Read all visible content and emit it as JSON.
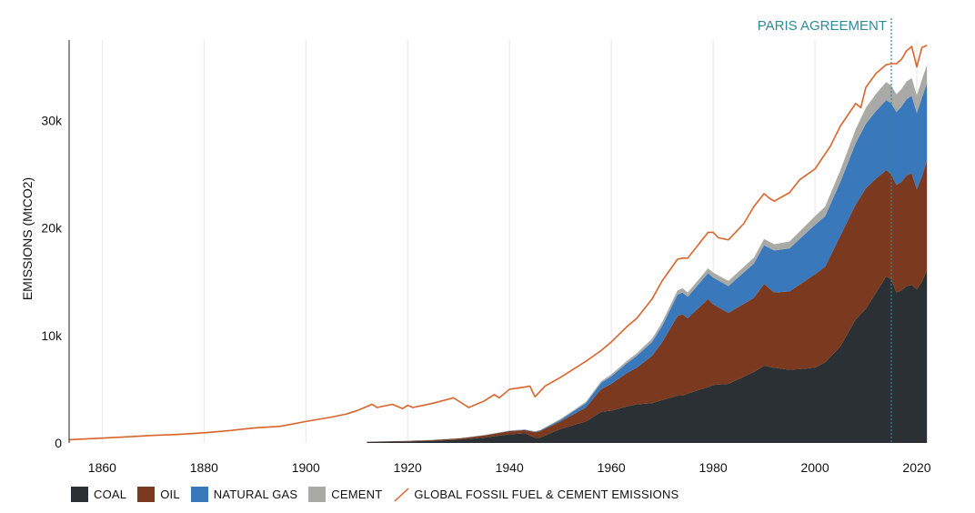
{
  "chart_data": {
    "type": "area",
    "stacked": true,
    "ylabel": "EMISSIONS (MtCO2)",
    "xlabel": "",
    "xlim": [
      1853.5,
      2022.5
    ],
    "ylim": [
      0,
      37500
    ],
    "x_ticks": [
      1860,
      1880,
      1900,
      1920,
      1940,
      1960,
      1980,
      2000,
      2020
    ],
    "y_ticks": [
      0,
      10000,
      20000,
      30000
    ],
    "y_tick_labels": [
      "0",
      "10k",
      "20k",
      "30k"
    ],
    "grid": "vertical",
    "legend_position": "bottom",
    "annotation": {
      "text": "PARIS AGREEMENT",
      "x": 2015
    },
    "x": [
      1912,
      1920,
      1925,
      1930,
      1935,
      1940,
      1943,
      1945,
      1946,
      1950,
      1955,
      1958,
      1960,
      1963,
      1965,
      1968,
      1970,
      1973,
      1974,
      1975,
      1979,
      1980,
      1983,
      1988,
      1990,
      1992,
      1995,
      2000,
      2002,
      2005,
      2008,
      2010,
      2012,
      2014,
      2015,
      2016,
      2017,
      2018,
      2019,
      2020,
      2021,
      2022
    ],
    "series": [
      {
        "name": "COAL",
        "color": "#2b3035",
        "values": [
          100,
          150,
          200,
          300,
          500,
          800,
          900,
          500,
          500,
          1300,
          2000,
          2900,
          3000,
          3400,
          3600,
          3700,
          4000,
          4400,
          4400,
          4600,
          5200,
          5400,
          5500,
          6600,
          7200,
          7000,
          6800,
          7000,
          7500,
          9000,
          11500,
          12500,
          14000,
          15500,
          15200,
          14000,
          14200,
          14600,
          14700,
          14300,
          15000,
          16100
        ]
      },
      {
        "name": "OIL",
        "color": "#7b3a1f",
        "values": [
          20,
          40,
          80,
          120,
          200,
          300,
          300,
          500,
          600,
          700,
          1300,
          2100,
          2500,
          3100,
          3400,
          4400,
          5400,
          7400,
          7600,
          7000,
          8200,
          7500,
          6600,
          6900,
          7600,
          7000,
          7300,
          8700,
          8900,
          10300,
          10700,
          11200,
          10600,
          9900,
          9800,
          10000,
          10100,
          10300,
          10400,
          9300,
          9800,
          10200
        ]
      },
      {
        "name": "NATURAL GAS",
        "color": "#3a78bc",
        "values": [
          0,
          0,
          0,
          0,
          10,
          20,
          30,
          50,
          60,
          150,
          400,
          600,
          700,
          900,
          1100,
          1300,
          1500,
          2000,
          2000,
          2000,
          2400,
          2500,
          2500,
          3200,
          3600,
          3900,
          4000,
          4600,
          4700,
          5000,
          5700,
          6000,
          6300,
          6500,
          6600,
          6800,
          7000,
          7100,
          7200,
          7100,
          7300,
          7200
        ]
      },
      {
        "name": "CEMENT",
        "color": "#a9aaa5",
        "values": [
          10,
          10,
          15,
          20,
          30,
          40,
          40,
          40,
          40,
          80,
          120,
          150,
          180,
          220,
          250,
          300,
          350,
          400,
          400,
          400,
          450,
          460,
          480,
          550,
          580,
          600,
          650,
          800,
          900,
          1100,
          1300,
          1500,
          1600,
          1700,
          1650,
          1650,
          1650,
          1650,
          1650,
          1650,
          1700,
          1700
        ]
      }
    ],
    "total": {
      "name": "GLOBAL FOSSIL FUEL & CEMENT EMISSIONS",
      "color": "#d9642a",
      "x": [
        1850,
        1860,
        1870,
        1875,
        1880,
        1885,
        1890,
        1895,
        1900,
        1905,
        1908,
        1910,
        1912,
        1913,
        1914,
        1917,
        1919,
        1920,
        1921,
        1925,
        1929,
        1932,
        1935,
        1937,
        1938,
        1940,
        1943,
        1944,
        1945,
        1947,
        1950,
        1955,
        1958,
        1960,
        1963,
        1965,
        1968,
        1970,
        1973,
        1974,
        1975,
        1979,
        1980,
        1981,
        1983,
        1986,
        1988,
        1990,
        1991,
        1992,
        1995,
        1997,
        2000,
        2003,
        2005,
        2008,
        2009,
        2010,
        2012,
        2014,
        2015,
        2016,
        2017,
        2018,
        2019,
        2020,
        2021,
        2022
      ],
      "values": [
        300,
        450,
        700,
        800,
        950,
        1150,
        1400,
        1550,
        2000,
        2400,
        2700,
        3000,
        3400,
        3600,
        3300,
        3600,
        3200,
        3500,
        3300,
        3700,
        4200,
        3300,
        3900,
        4500,
        4200,
        5000,
        5200,
        5300,
        4300,
        5300,
        6100,
        7600,
        8600,
        9400,
        10800,
        11600,
        13400,
        15100,
        17100,
        17200,
        17200,
        19600,
        19600,
        19100,
        18900,
        20400,
        22000,
        23200,
        22800,
        22500,
        23300,
        24500,
        25500,
        27600,
        29500,
        31600,
        31200,
        33100,
        34400,
        35200,
        35300,
        35300,
        35700,
        36500,
        36900,
        35000,
        36800,
        37000
      ]
    }
  }
}
